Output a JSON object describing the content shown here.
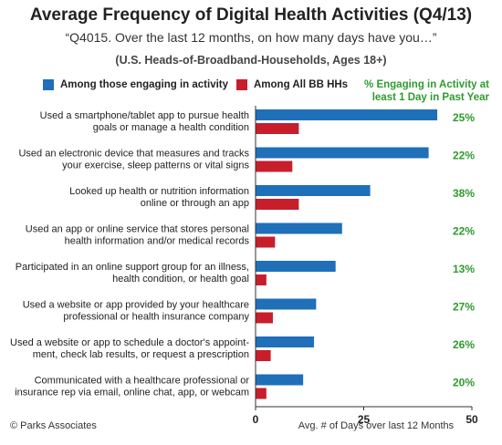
{
  "chart_data": {
    "type": "bar",
    "title": "Average Frequency of Digital Health Activities (Q4/13)",
    "subtitle": "“Q4015. Over the last 12 months, on how many days have you…”",
    "subtitle2": "(U.S. Heads-of-Broadband-Households, Ages 18+)",
    "xlabel": "Avg. # of Days over last 12 Months",
    "xlim": [
      0,
      50
    ],
    "xticks": [
      "0",
      "25",
      "50"
    ],
    "grid": false,
    "pct_header": [
      "% Engaging in Activity at",
      "least 1 Day in Past Year"
    ],
    "categories": [
      [
        "Used a smartphone/tablet app to pursue health",
        "goals or manage a health condition"
      ],
      [
        "Used an electronic device that measures and tracks",
        "your exercise, sleep patterns or vital signs"
      ],
      [
        "Looked up health or nutrition information",
        "online or through an app"
      ],
      [
        "Used an app or online service that stores personal",
        "health information and/or medical records"
      ],
      [
        "Participated in an online support group for an illness,",
        "health condition, or health goal"
      ],
      [
        "Used a website or app provided by your healthcare",
        "professional or health insurance company"
      ],
      [
        "Used a website or app to schedule a doctor's appoint-",
        "ment, check lab results, or request a prescription"
      ],
      [
        "Communicated with a healthcare professional or",
        "insurance rep via email, online chat, app, or webcam"
      ]
    ],
    "series": [
      {
        "name": "Among those engaging in activity",
        "color": "#1f6fb9",
        "values": [
          42,
          40,
          26.5,
          20,
          18.5,
          14,
          13.5,
          11
        ]
      },
      {
        "name": "Among All BB HHs",
        "color": "#c81e2c",
        "values": [
          10,
          8.5,
          10,
          4.5,
          2.5,
          4,
          3.5,
          2.5
        ]
      }
    ],
    "percent_labels": [
      "25%",
      "22%",
      "38%",
      "22%",
      "13%",
      "27%",
      "26%",
      "20%"
    ]
  },
  "footer": "© Parks Associates"
}
